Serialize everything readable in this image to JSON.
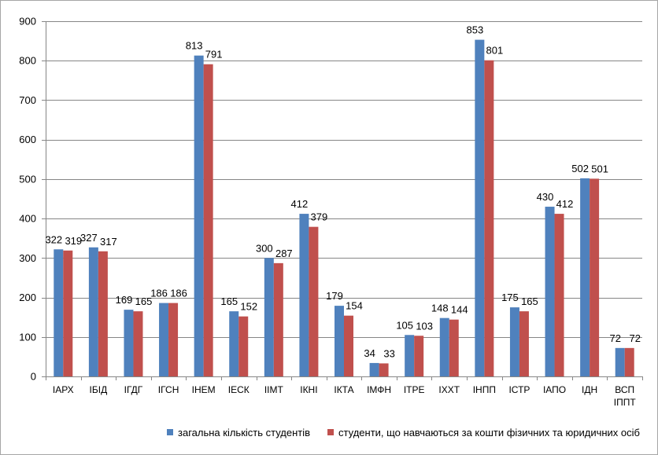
{
  "chart_data": {
    "type": "bar",
    "categories": [
      [
        "ІАРХ"
      ],
      [
        "ІБІД"
      ],
      [
        "ІГДГ"
      ],
      [
        "ІГСН"
      ],
      [
        "ІНЕМ"
      ],
      [
        "ІЕСК"
      ],
      [
        "ІІМТ"
      ],
      [
        "ІКНІ"
      ],
      [
        "ІКТА"
      ],
      [
        "ІМФН"
      ],
      [
        "ІТРЕ"
      ],
      [
        "ІХХТ"
      ],
      [
        "ІНПП"
      ],
      [
        "ІСТР"
      ],
      [
        "ІАПО"
      ],
      [
        "ІДН"
      ],
      [
        "ВСП",
        "ІППТ"
      ]
    ],
    "series": [
      {
        "name": "загальна кількість студентів",
        "color": "#4f81bd",
        "values": [
          322,
          327,
          169,
          186,
          813,
          165,
          300,
          412,
          179,
          34,
          105,
          148,
          853,
          175,
          430,
          502,
          72
        ]
      },
      {
        "name": "студенти, що навчаються за кошти фізичних та юридичних осіб",
        "color": "#c0504d",
        "values": [
          319,
          317,
          165,
          186,
          791,
          152,
          287,
          379,
          154,
          33,
          103,
          144,
          801,
          165,
          412,
          501,
          72
        ]
      }
    ],
    "title": "",
    "xlabel": "",
    "ylabel": "",
    "ylim": [
      0,
      900
    ],
    "yticks": [
      0,
      100,
      200,
      300,
      400,
      500,
      600,
      700,
      800,
      900
    ],
    "grid": true,
    "legend_position": "bottom"
  }
}
